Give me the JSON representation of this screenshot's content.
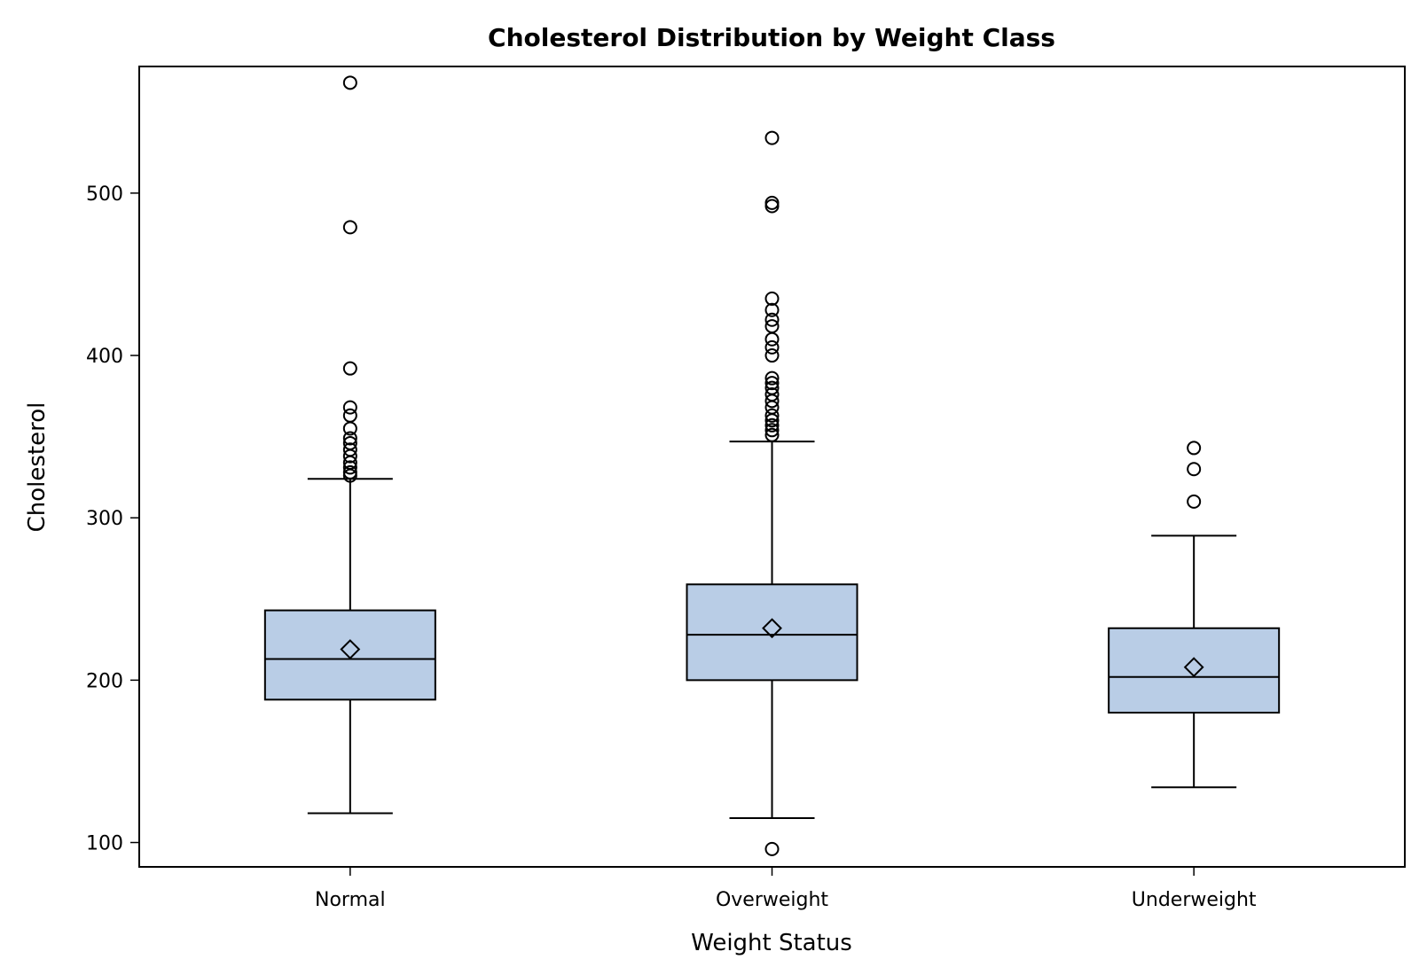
{
  "chart_data": {
    "type": "boxplot",
    "title": "Cholesterol Distribution by Weight Class",
    "xlabel": "Weight Status",
    "ylabel": "Cholesterol",
    "ylim": [
      85,
      578
    ],
    "yticks": [
      100,
      200,
      300,
      400,
      500
    ],
    "grid": false,
    "box_color": "#b9cde6",
    "categories": [
      "Normal",
      "Overweight",
      "Underweight"
    ],
    "boxes": [
      {
        "category": "Normal",
        "whisker_low": 118,
        "q1": 188,
        "median": 213,
        "q3": 243,
        "whisker_high": 324,
        "mean": 219,
        "outliers": [
          326,
          328,
          331,
          334,
          338,
          342,
          346,
          349,
          355,
          363,
          368,
          392,
          479,
          568
        ]
      },
      {
        "category": "Overweight",
        "whisker_low": 115,
        "q1": 200,
        "median": 228,
        "q3": 259,
        "whisker_high": 347,
        "mean": 232,
        "outliers": [
          96,
          351,
          354,
          357,
          360,
          363,
          368,
          372,
          376,
          380,
          383,
          386,
          400,
          405,
          410,
          418,
          422,
          428,
          435,
          492,
          494,
          534
        ]
      },
      {
        "category": "Underweight",
        "whisker_low": 134,
        "q1": 180,
        "median": 202,
        "q3": 232,
        "whisker_high": 289,
        "mean": 208,
        "outliers": [
          310,
          330,
          343
        ]
      }
    ]
  }
}
